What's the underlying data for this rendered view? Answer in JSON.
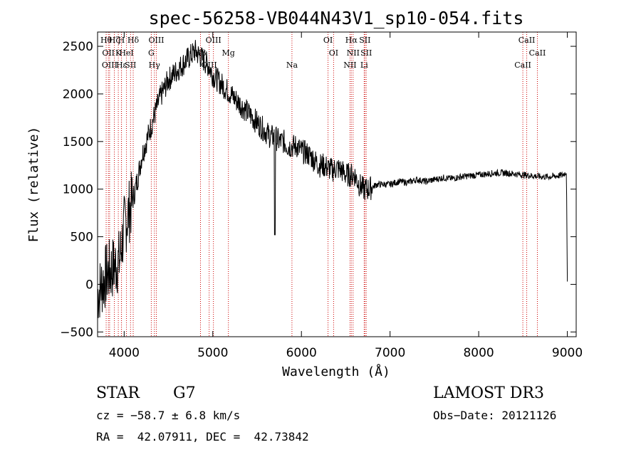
{
  "chart_data": {
    "type": "line",
    "title": "spec-56258-VB044N43V1_sp10-054.fits",
    "xlabel": "Wavelength (Å)",
    "ylabel": "Flux (relative)",
    "xlim": [
      3700,
      9100
    ],
    "ylim": [
      -550,
      2650
    ],
    "xticks": [
      4000,
      5000,
      6000,
      7000,
      8000,
      9000
    ],
    "yticks": [
      -500,
      0,
      500,
      1000,
      1500,
      2000,
      2500
    ],
    "series": [
      {
        "name": "spectrum",
        "color": "#000000",
        "x": [
          3700,
          3750,
          3800,
          3850,
          3900,
          3950,
          4000,
          4050,
          4100,
          4150,
          4200,
          4250,
          4300,
          4350,
          4400,
          4450,
          4500,
          4550,
          4600,
          4650,
          4700,
          4750,
          4800,
          4850,
          4900,
          4950,
          5000,
          5050,
          5100,
          5150,
          5200,
          5250,
          5300,
          5350,
          5400,
          5450,
          5500,
          5550,
          5600,
          5650,
          5700,
          5750,
          5800,
          5850,
          5900,
          5950,
          6000,
          6050,
          6100,
          6150,
          6200,
          6250,
          6300,
          6350,
          6400,
          6450,
          6500,
          6550,
          6600,
          6650,
          6700,
          6750,
          6800,
          6850,
          6900,
          6950,
          7000,
          7100,
          7200,
          7300,
          7400,
          7500,
          7600,
          7700,
          7800,
          7900,
          8000,
          8100,
          8200,
          8300,
          8400,
          8500,
          8600,
          8700,
          8800,
          8900,
          8950,
          8990,
          9000
        ],
        "y": [
          -100,
          0,
          100,
          150,
          200,
          250,
          600,
          750,
          900,
          1100,
          1350,
          1500,
          1650,
          1800,
          1950,
          2050,
          2150,
          2200,
          2250,
          2300,
          2350,
          2400,
          2450,
          2400,
          2350,
          2300,
          2200,
          2150,
          2100,
          2050,
          2000,
          1950,
          1900,
          1850,
          1800,
          1750,
          1700,
          1650,
          1600,
          1550,
          1550,
          1500,
          1500,
          1450,
          1450,
          1450,
          1400,
          1380,
          1350,
          1300,
          1250,
          1250,
          1220,
          1200,
          1220,
          1200,
          1150,
          1150,
          1150,
          1050,
          1000,
          1000,
          1020,
          1050,
          1050,
          1050,
          1050,
          1080,
          1070,
          1100,
          1080,
          1100,
          1120,
          1110,
          1130,
          1140,
          1150,
          1160,
          1170,
          1170,
          1160,
          1150,
          1140,
          1130,
          1130,
          1140,
          1150,
          1180,
          0
        ]
      }
    ],
    "lines": [
      {
        "x": 3797,
        "label": "Hθ"
      },
      {
        "x": 3822,
        "label": "OII"
      },
      {
        "x": 3836,
        "label": "OIII"
      },
      {
        "x": 3889,
        "label": "Hζ"
      },
      {
        "x": 3934,
        "label": "K"
      },
      {
        "x": 3970,
        "label": "Hε"
      },
      {
        "x": 3969,
        "label": "H"
      },
      {
        "x": 4026,
        "label": "HeI"
      },
      {
        "x": 4072,
        "label": "SII"
      },
      {
        "x": 4102,
        "label": "Hδ"
      },
      {
        "x": 4306,
        "label": "G"
      },
      {
        "x": 4341,
        "label": "Hγ"
      },
      {
        "x": 4363,
        "label": "OIII"
      },
      {
        "x": 4861,
        "label": "Hβ"
      },
      {
        "x": 4959,
        "label": "OIII"
      },
      {
        "x": 5007,
        "label": "OIII"
      },
      {
        "x": 5176,
        "label": "Mg"
      },
      {
        "x": 5893,
        "label": "Na"
      },
      {
        "x": 6300,
        "label": "OI"
      },
      {
        "x": 6363,
        "label": "OI"
      },
      {
        "x": 6548,
        "label": "NII"
      },
      {
        "x": 6563,
        "label": "Hα"
      },
      {
        "x": 6583,
        "label": "NII"
      },
      {
        "x": 6708,
        "label": "Li"
      },
      {
        "x": 6716,
        "label": "SII"
      },
      {
        "x": 6731,
        "label": "SII"
      },
      {
        "x": 8498,
        "label": "CaII"
      },
      {
        "x": 8542,
        "label": "CaII"
      },
      {
        "x": 8662,
        "label": "CaII"
      }
    ]
  },
  "info": {
    "object_class": "STAR",
    "subclass": "G7",
    "survey": "LAMOST DR3",
    "cz": "cz = −58.7 ± 6.8 km/s",
    "obs_date": "Obs−Date: 20121126",
    "coords": "RA =  42.07911, DEC =  42.73842"
  }
}
